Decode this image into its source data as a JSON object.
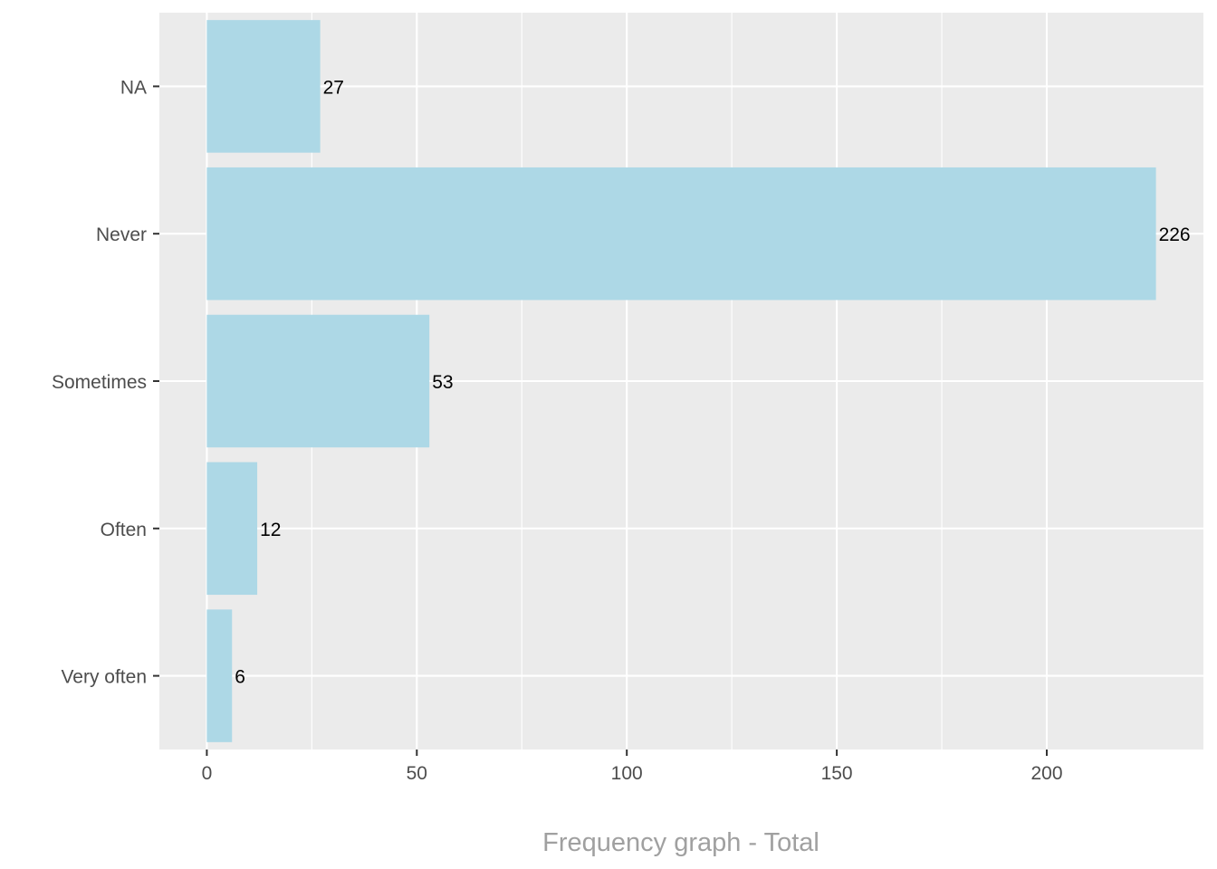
{
  "chart_data": {
    "type": "bar",
    "orientation": "horizontal",
    "categories": [
      "NA",
      "Never",
      "Sometimes",
      "Often",
      "Very often"
    ],
    "values": [
      27,
      226,
      53,
      12,
      6
    ],
    "data_labels": [
      "27",
      "226",
      "53",
      "12",
      "6"
    ],
    "xlabel": "Frequency graph - Total",
    "ylabel": "",
    "xlim": [
      -11.3,
      237.3
    ],
    "x_ticks": [
      0,
      50,
      100,
      150,
      200
    ],
    "x_tick_labels": [
      "0",
      "50",
      "100",
      "150",
      "200"
    ],
    "grid": true,
    "legend": "none",
    "colors": {
      "bar": "#add8e6",
      "panel_background": "#ebebeb",
      "grid": "#ffffff",
      "axis_text": "#4d4d4d",
      "axis_title": "#a0a0a0",
      "label_text": "#000000"
    }
  }
}
